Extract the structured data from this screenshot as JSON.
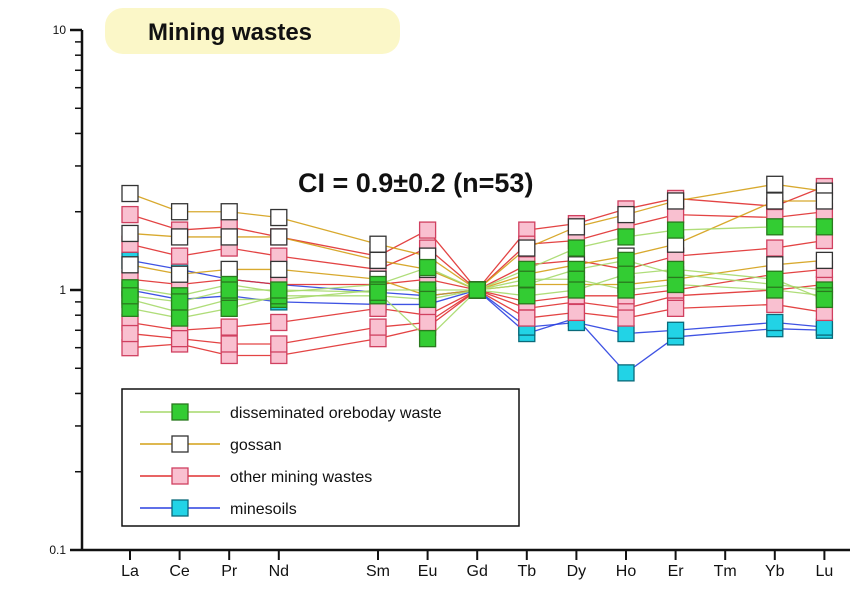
{
  "chart_data": {
    "type": "line",
    "title": "Mining wastes",
    "annotation": "CI = 0.9±0.2 (n=53)",
    "xlabel": "",
    "ylabel": "",
    "y_scale": "log",
    "ylim": [
      0.1,
      10
    ],
    "yticks": [
      {
        "value": 10,
        "label": "10"
      },
      {
        "value": 1,
        "label": "1"
      },
      {
        "value": 0.1,
        "label": "0.1"
      }
    ],
    "categories": [
      "La",
      "Ce",
      "Pr",
      "Nd",
      "Sm",
      "Eu",
      "Gd",
      "Tb",
      "Dy",
      "Ho",
      "Er",
      "Tm",
      "Yb",
      "Lu"
    ],
    "category_positions": [
      0,
      1,
      2,
      3,
      5,
      6,
      7,
      8,
      9,
      10,
      11,
      12,
      13,
      14
    ],
    "legend_position": "lower-left",
    "legend": [
      {
        "label": "disseminated oreboday waste",
        "line_color": "#a6d96a",
        "fill": "#33cc33"
      },
      {
        "label": "gossan",
        "line_color": "#d4a017",
        "fill": "#ffffff"
      },
      {
        "label": "other mining wastes",
        "line_color": "#e03030",
        "fill": "#f9c0d0"
      },
      {
        "label": "minesoils",
        "line_color": "#2a40e0",
        "fill": "#22d3e6"
      }
    ],
    "series": [
      {
        "group": "disseminated",
        "values": [
          1.02,
          0.95,
          1.05,
          0.98,
          1.05,
          1.22,
          1.0,
          1.2,
          1.45,
          1.6,
          1.7,
          null,
          1.75,
          1.75
        ]
      },
      {
        "group": "disseminated",
        "values": [
          0.92,
          0.82,
          0.92,
          0.92,
          1.0,
          1.0,
          1.0,
          1.05,
          1.2,
          1.3,
          1.15,
          null,
          1.05,
          1.0
        ]
      },
      {
        "group": "disseminated",
        "values": [
          0.85,
          0.78,
          0.85,
          0.95,
          0.95,
          0.92,
          1.0,
          1.1,
          1.1,
          1.0,
          1.05,
          null,
          1.0,
          0.95
        ]
      },
      {
        "group": "disseminated",
        "values": [
          0.95,
          0.9,
          1.0,
          1.0,
          0.98,
          0.65,
          1.0,
          0.95,
          1.0,
          1.15,
          1.2,
          null,
          1.1,
          0.92
        ]
      },
      {
        "group": "gossan",
        "values": [
          2.35,
          2.0,
          2.0,
          1.9,
          1.5,
          1.35,
          1.0,
          1.45,
          1.75,
          1.95,
          2.2,
          null,
          2.55,
          2.4
        ]
      },
      {
        "group": "gossan",
        "values": [
          1.65,
          1.6,
          1.6,
          1.6,
          1.3,
          1.2,
          1.0,
          1.15,
          1.25,
          1.35,
          1.5,
          null,
          2.2,
          2.2
        ]
      },
      {
        "group": "gossan",
        "values": [
          1.25,
          1.15,
          1.2,
          1.2,
          1.1,
          0.95,
          1.0,
          1.05,
          1.05,
          1.05,
          1.1,
          null,
          1.25,
          1.3
        ]
      },
      {
        "group": "other",
        "values": [
          1.95,
          1.7,
          1.75,
          1.6,
          1.35,
          1.7,
          1.0,
          1.7,
          1.8,
          2.05,
          2.25,
          null,
          2.1,
          2.5
        ]
      },
      {
        "group": "other",
        "values": [
          1.5,
          1.35,
          1.45,
          1.35,
          1.2,
          1.45,
          1.0,
          1.5,
          1.55,
          1.75,
          1.95,
          null,
          1.9,
          2.0
        ]
      },
      {
        "group": "other",
        "values": [
          1.1,
          1.05,
          1.1,
          1.05,
          1.05,
          1.1,
          1.0,
          1.25,
          1.3,
          1.2,
          1.35,
          null,
          1.45,
          1.55
        ]
      },
      {
        "group": "other",
        "values": [
          0.75,
          0.7,
          0.72,
          0.75,
          0.85,
          0.8,
          1.0,
          0.85,
          0.9,
          0.85,
          0.95,
          null,
          1.0,
          1.05
        ]
      },
      {
        "group": "other",
        "values": [
          0.6,
          0.62,
          0.56,
          0.56,
          0.65,
          0.72,
          1.0,
          0.78,
          0.82,
          0.78,
          0.85,
          null,
          0.88,
          0.82
        ]
      },
      {
        "group": "other",
        "values": [
          0.68,
          0.65,
          0.62,
          0.62,
          0.72,
          0.75,
          1.0,
          0.9,
          0.95,
          0.95,
          1.0,
          null,
          1.15,
          1.2
        ]
      },
      {
        "group": "minesoils",
        "values": [
          1.3,
          1.2,
          1.1,
          1.05,
          0.98,
          0.95,
          1.0,
          0.68,
          0.78,
          0.48,
          0.66,
          null,
          0.71,
          0.7
        ]
      },
      {
        "group": "minesoils",
        "values": [
          1.0,
          0.92,
          0.95,
          0.9,
          0.88,
          0.88,
          1.0,
          0.72,
          0.75,
          0.68,
          0.7,
          null,
          0.75,
          0.72
        ]
      }
    ]
  }
}
